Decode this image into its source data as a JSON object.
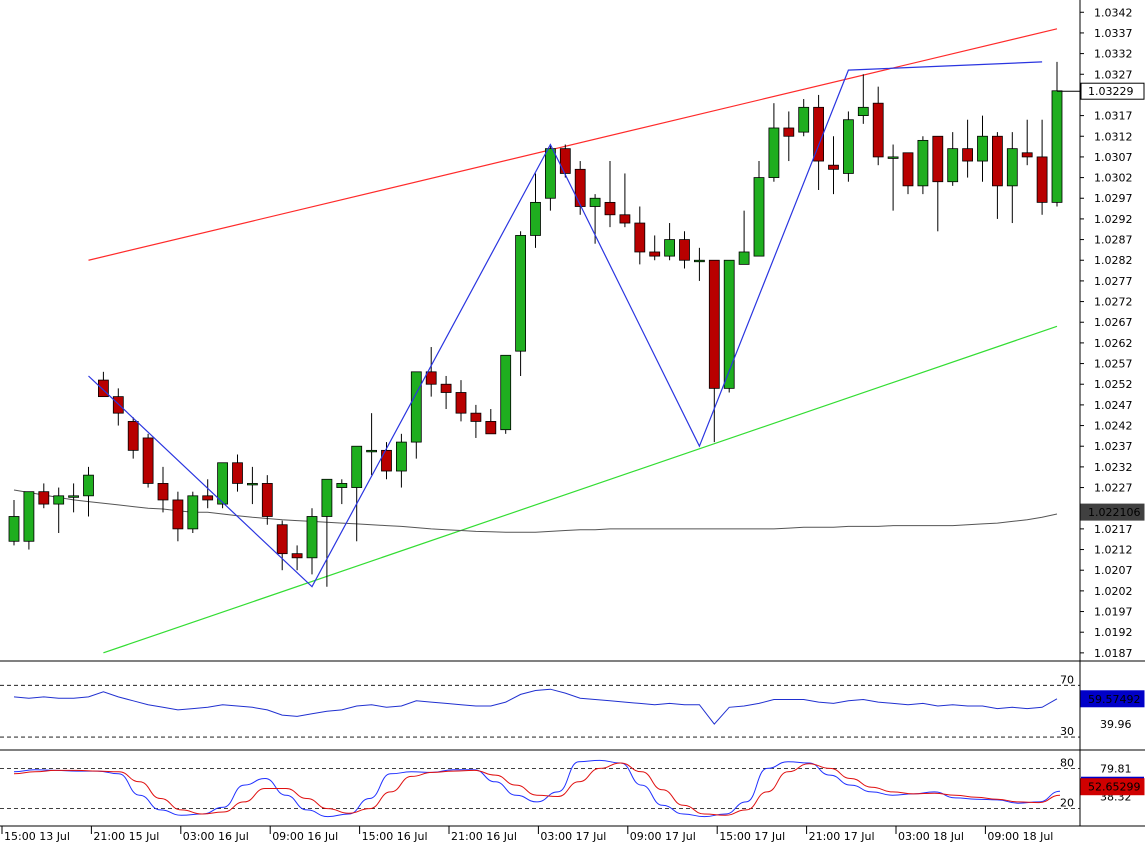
{
  "chart_data": {
    "type": "candlestick",
    "price_axis": {
      "ticks": [
        "1.0342",
        "1.0337",
        "1.0332",
        "1.0327",
        "1.0317",
        "1.0312",
        "1.0307",
        "1.0302",
        "1.0297",
        "1.0292",
        "1.0287",
        "1.0282",
        "1.0277",
        "1.0272",
        "1.0267",
        "1.0262",
        "1.0257",
        "1.0252",
        "1.0247",
        "1.0242",
        "1.0237",
        "1.0232",
        "1.0227",
        "1.0217",
        "1.0212",
        "1.0207",
        "1.0202",
        "1.0197",
        "1.0192",
        "1.0187"
      ],
      "range": [
        1.0186,
        1.0344
      ]
    },
    "current_price_label": "1.03229",
    "moving_average_label": "1.022106",
    "candles": [
      {
        "o": 1.0214,
        "h": 1.0224,
        "l": 1.0213,
        "c": 1.022
      },
      {
        "o": 1.0214,
        "h": 1.0226,
        "l": 1.0212,
        "c": 1.0226
      },
      {
        "o": 1.0226,
        "h": 1.0228,
        "l": 1.0222,
        "c": 1.0223
      },
      {
        "o": 1.0223,
        "h": 1.0227,
        "l": 1.0216,
        "c": 1.0225
      },
      {
        "o": 1.0225,
        "h": 1.0228,
        "l": 1.0221,
        "c": 1.0225
      },
      {
        "o": 1.0225,
        "h": 1.0232,
        "l": 1.022,
        "c": 1.023
      },
      {
        "o": 1.0253,
        "h": 1.0255,
        "l": 1.0249,
        "c": 1.0249
      },
      {
        "o": 1.0249,
        "h": 1.0251,
        "l": 1.0242,
        "c": 1.0245
      },
      {
        "o": 1.0243,
        "h": 1.0244,
        "l": 1.0234,
        "c": 1.0236
      },
      {
        "o": 1.0239,
        "h": 1.024,
        "l": 1.0227,
        "c": 1.0228
      },
      {
        "o": 1.0228,
        "h": 1.0232,
        "l": 1.0221,
        "c": 1.0224
      },
      {
        "o": 1.0224,
        "h": 1.0226,
        "l": 1.0214,
        "c": 1.0217
      },
      {
        "o": 1.0217,
        "h": 1.0226,
        "l": 1.0216,
        "c": 1.0225
      },
      {
        "o": 1.0225,
        "h": 1.0229,
        "l": 1.0222,
        "c": 1.0224
      },
      {
        "o": 1.0223,
        "h": 1.0233,
        "l": 1.0222,
        "c": 1.0233
      },
      {
        "o": 1.0233,
        "h": 1.0235,
        "l": 1.0226,
        "c": 1.0228
      },
      {
        "o": 1.0228,
        "h": 1.0232,
        "l": 1.0223,
        "c": 1.0228
      },
      {
        "o": 1.0228,
        "h": 1.023,
        "l": 1.0218,
        "c": 1.022
      },
      {
        "o": 1.0218,
        "h": 1.0219,
        "l": 1.0207,
        "c": 1.0211
      },
      {
        "o": 1.0211,
        "h": 1.0213,
        "l": 1.0207,
        "c": 1.021
      },
      {
        "o": 1.021,
        "h": 1.0222,
        "l": 1.0206,
        "c": 1.022
      },
      {
        "o": 1.022,
        "h": 1.0229,
        "l": 1.0203,
        "c": 1.0229
      },
      {
        "o": 1.0227,
        "h": 1.0229,
        "l": 1.0223,
        "c": 1.0228
      },
      {
        "o": 1.0227,
        "h": 1.0237,
        "l": 1.0214,
        "c": 1.0237
      },
      {
        "o": 1.0236,
        "h": 1.0245,
        "l": 1.023,
        "c": 1.0236
      },
      {
        "o": 1.0236,
        "h": 1.0238,
        "l": 1.0229,
        "c": 1.0231
      },
      {
        "o": 1.0231,
        "h": 1.024,
        "l": 1.0227,
        "c": 1.0238
      },
      {
        "o": 1.0238,
        "h": 1.0255,
        "l": 1.0234,
        "c": 1.0255
      },
      {
        "o": 1.0255,
        "h": 1.0261,
        "l": 1.0249,
        "c": 1.0252
      },
      {
        "o": 1.0252,
        "h": 1.0254,
        "l": 1.0246,
        "c": 1.025
      },
      {
        "o": 1.025,
        "h": 1.0253,
        "l": 1.0243,
        "c": 1.0245
      },
      {
        "o": 1.0245,
        "h": 1.0247,
        "l": 1.0239,
        "c": 1.0243
      },
      {
        "o": 1.0243,
        "h": 1.0246,
        "l": 1.024,
        "c": 1.024
      },
      {
        "o": 1.0241,
        "h": 1.0259,
        "l": 1.024,
        "c": 1.0259
      },
      {
        "o": 1.026,
        "h": 1.0289,
        "l": 1.0254,
        "c": 1.0288
      },
      {
        "o": 1.0288,
        "h": 1.0303,
        "l": 1.0285,
        "c": 1.0296
      },
      {
        "o": 1.0297,
        "h": 1.031,
        "l": 1.0294,
        "c": 1.0309
      },
      {
        "o": 1.0309,
        "h": 1.031,
        "l": 1.0302,
        "c": 1.0303
      },
      {
        "o": 1.0304,
        "h": 1.0306,
        "l": 1.0293,
        "c": 1.0295
      },
      {
        "o": 1.0295,
        "h": 1.0298,
        "l": 1.0286,
        "c": 1.0297
      },
      {
        "o": 1.0296,
        "h": 1.0306,
        "l": 1.029,
        "c": 1.0293
      },
      {
        "o": 1.0293,
        "h": 1.0303,
        "l": 1.029,
        "c": 1.0291
      },
      {
        "o": 1.0291,
        "h": 1.0295,
        "l": 1.0281,
        "c": 1.0284
      },
      {
        "o": 1.0284,
        "h": 1.0288,
        "l": 1.0282,
        "c": 1.0283
      },
      {
        "o": 1.0283,
        "h": 1.0291,
        "l": 1.0282,
        "c": 1.0287
      },
      {
        "o": 1.0287,
        "h": 1.0289,
        "l": 1.028,
        "c": 1.0282
      },
      {
        "o": 1.0282,
        "h": 1.0285,
        "l": 1.0277,
        "c": 1.0282
      },
      {
        "o": 1.0282,
        "h": 1.0282,
        "l": 1.0238,
        "c": 1.0251
      },
      {
        "o": 1.0251,
        "h": 1.0282,
        "l": 1.025,
        "c": 1.0282
      },
      {
        "o": 1.0281,
        "h": 1.0294,
        "l": 1.0281,
        "c": 1.0284
      },
      {
        "o": 1.0283,
        "h": 1.0306,
        "l": 1.0283,
        "c": 1.0302
      },
      {
        "o": 1.0302,
        "h": 1.032,
        "l": 1.0301,
        "c": 1.0314
      },
      {
        "o": 1.0314,
        "h": 1.0318,
        "l": 1.0306,
        "c": 1.0312
      },
      {
        "o": 1.0313,
        "h": 1.0321,
        "l": 1.0312,
        "c": 1.0319
      },
      {
        "o": 1.0319,
        "h": 1.0322,
        "l": 1.0299,
        "c": 1.0306
      },
      {
        "o": 1.0305,
        "h": 1.0312,
        "l": 1.0298,
        "c": 1.0304
      },
      {
        "o": 1.0303,
        "h": 1.0318,
        "l": 1.0301,
        "c": 1.0316
      },
      {
        "o": 1.0317,
        "h": 1.0327,
        "l": 1.0315,
        "c": 1.0319
      },
      {
        "o": 1.032,
        "h": 1.0324,
        "l": 1.0305,
        "c": 1.0307
      },
      {
        "o": 1.0307,
        "h": 1.031,
        "l": 1.0294,
        "c": 1.0307
      },
      {
        "o": 1.0308,
        "h": 1.0308,
        "l": 1.0298,
        "c": 1.03
      },
      {
        "o": 1.03,
        "h": 1.0312,
        "l": 1.0298,
        "c": 1.0311
      },
      {
        "o": 1.0312,
        "h": 1.0312,
        "l": 1.0289,
        "c": 1.0301
      },
      {
        "o": 1.0301,
        "h": 1.0313,
        "l": 1.03,
        "c": 1.0309
      },
      {
        "o": 1.0309,
        "h": 1.0316,
        "l": 1.0302,
        "c": 1.0306
      },
      {
        "o": 1.0306,
        "h": 1.0317,
        "l": 1.0301,
        "c": 1.0312
      },
      {
        "o": 1.0312,
        "h": 1.0313,
        "l": 1.0292,
        "c": 1.03
      },
      {
        "o": 1.03,
        "h": 1.0313,
        "l": 1.0291,
        "c": 1.0309
      },
      {
        "o": 1.0308,
        "h": 1.0316,
        "l": 1.0305,
        "c": 1.0307
      },
      {
        "o": 1.0307,
        "h": 1.0316,
        "l": 1.0293,
        "c": 1.0296
      },
      {
        "o": 1.0296,
        "h": 1.033,
        "l": 1.0295,
        "c": 1.0323
      }
    ],
    "moving_average": [
      1.02264,
      1.02258,
      1.02252,
      1.02246,
      1.0224,
      1.02236,
      1.02232,
      1.02228,
      1.02224,
      1.0222,
      1.02218,
      1.02214,
      1.0221,
      1.0221,
      1.02206,
      1.02202,
      1.02198,
      1.02195,
      1.02192,
      1.0219,
      1.02188,
      1.02186,
      1.02184,
      1.02182,
      1.0218,
      1.02178,
      1.02176,
      1.02173,
      1.0217,
      1.02168,
      1.02166,
      1.02164,
      1.02163,
      1.02162,
      1.02162,
      1.02162,
      1.02164,
      1.02166,
      1.02168,
      1.02168,
      1.0217,
      1.0217,
      1.0217,
      1.0217,
      1.0217,
      1.0217,
      1.0217,
      1.0217,
      1.0217,
      1.0217,
      1.0217,
      1.0217,
      1.02172,
      1.02174,
      1.02174,
      1.02174,
      1.02176,
      1.02176,
      1.02176,
      1.02178,
      1.02178,
      1.02178,
      1.02178,
      1.02178,
      1.0218,
      1.02182,
      1.02184,
      1.02188,
      1.02192,
      1.02198,
      1.02206
    ],
    "channel_upper": {
      "from": [
        5,
        1.0282
      ],
      "to": [
        70,
        1.0338
      ]
    },
    "channel_lower": {
      "from": [
        6,
        1.0187
      ],
      "to": [
        70,
        1.0266
      ]
    },
    "zigzag": [
      [
        5,
        1.0254
      ],
      [
        20,
        1.0203
      ],
      [
        36,
        1.031
      ],
      [
        46,
        1.0237
      ],
      [
        56,
        1.0328
      ],
      [
        69,
        1.033
      ]
    ],
    "rsi": {
      "levels": [
        "70",
        "30"
      ],
      "range": [
        20,
        88
      ],
      "current_label": "59.57492",
      "sub_label": "39.96",
      "values": [
        61,
        60,
        61,
        60,
        60,
        61,
        65,
        61,
        58,
        55,
        53,
        51,
        52,
        53,
        55,
        54,
        53,
        51,
        47,
        46,
        48,
        50,
        51,
        54,
        55,
        53,
        54,
        58,
        57,
        56,
        55,
        54,
        54,
        57,
        63,
        66,
        67,
        64,
        60,
        59,
        58,
        57,
        56,
        55,
        56,
        55,
        55,
        40,
        53,
        54,
        56,
        59,
        59,
        59,
        57,
        56,
        58,
        59,
        57,
        56,
        55,
        56,
        54,
        55,
        54,
        54,
        52,
        53,
        52,
        53,
        59.6
      ]
    },
    "stochastic": {
      "levels": [
        "80",
        "20"
      ],
      "range": [
        0,
        100
      ],
      "current_label": "52.65299",
      "sub_label": "38.32",
      "secondary_label": "79.81",
      "main": [
        75,
        78,
        77,
        76,
        76,
        72,
        40,
        18,
        10,
        12,
        22,
        55,
        65,
        40,
        18,
        8,
        12,
        35,
        72,
        75,
        74,
        78,
        78,
        60,
        40,
        30,
        45,
        90,
        92,
        88,
        55,
        25,
        12,
        8,
        12,
        30,
        80,
        90,
        88,
        70,
        55,
        45,
        40,
        42,
        45,
        36,
        34,
        33,
        28,
        30,
        46
      ],
      "signal": [
        72,
        75,
        77,
        77,
        76,
        75,
        60,
        35,
        18,
        12,
        15,
        30,
        50,
        50,
        35,
        20,
        13,
        20,
        45,
        68,
        74,
        76,
        77,
        70,
        55,
        40,
        38,
        60,
        80,
        88,
        75,
        48,
        25,
        12,
        10,
        18,
        45,
        75,
        87,
        80,
        65,
        52,
        45,
        42,
        43,
        40,
        37,
        34,
        30,
        29,
        40
      ]
    },
    "time_axis": {
      "labels": [
        "15:00 13 Jul",
        "21:00 15 Jul",
        "03:00 16 Jul",
        "09:00 16 Jul",
        "15:00 16 Jul",
        "21:00 16 Jul",
        "03:00 17 Jul",
        "09:00 17 Jul",
        "15:00 17 Jul",
        "21:00 17 Jul",
        "03:00 18 Jul",
        "09:00 18 Jul"
      ],
      "label_bars": [
        0,
        6,
        12,
        18,
        24,
        30,
        36,
        42,
        48,
        54,
        60,
        66
      ]
    },
    "colors": {
      "bull": "#1fae1f",
      "bear": "#b80000",
      "channel_upper": "#ff2a2a",
      "channel_lower": "#33dd33",
      "zigzag": "#2a35e0",
      "ma": "#555555",
      "rsi_line": "#2030d0",
      "stoch_main": "#2030ff",
      "stoch_signal": "#e01010",
      "badge_blue": "#0000c8",
      "badge_red": "#d00000",
      "badge_gray": "#404040"
    }
  }
}
